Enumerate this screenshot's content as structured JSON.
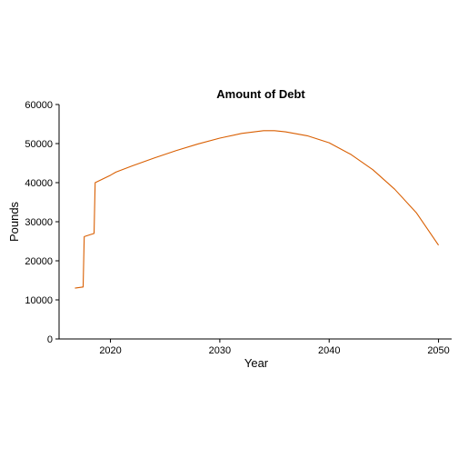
{
  "chart_data": {
    "type": "line",
    "title": "Amount of Debt",
    "xlabel": "Year",
    "ylabel": "Pounds",
    "xlim": [
      2015.3,
      2051.2
    ],
    "ylim": [
      0,
      60000
    ],
    "x_ticks": [
      2020,
      2030,
      2040,
      2050
    ],
    "y_ticks": [
      0,
      10000,
      20000,
      30000,
      40000,
      50000,
      60000
    ],
    "grid": false,
    "legend": "none",
    "series": [
      {
        "color": "#d95f02",
        "points": [
          [
            2016.75,
            13000
          ],
          [
            2017.5,
            13300
          ],
          [
            2017.6,
            26200
          ],
          [
            2018.5,
            27000
          ],
          [
            2018.6,
            40000
          ],
          [
            2020.0,
            41900
          ],
          [
            2020.5,
            42700
          ],
          [
            2022.0,
            44300
          ],
          [
            2024.0,
            46300
          ],
          [
            2026.0,
            48200
          ],
          [
            2028.0,
            49900
          ],
          [
            2030.0,
            51400
          ],
          [
            2032.0,
            52600
          ],
          [
            2034.0,
            53300
          ],
          [
            2035.0,
            53300
          ],
          [
            2036.0,
            53000
          ],
          [
            2038.0,
            52000
          ],
          [
            2040.0,
            50200
          ],
          [
            2042.0,
            47200
          ],
          [
            2044.0,
            43300
          ],
          [
            2046.0,
            38300
          ],
          [
            2048.0,
            32200
          ],
          [
            2050.0,
            24000
          ]
        ]
      }
    ]
  }
}
